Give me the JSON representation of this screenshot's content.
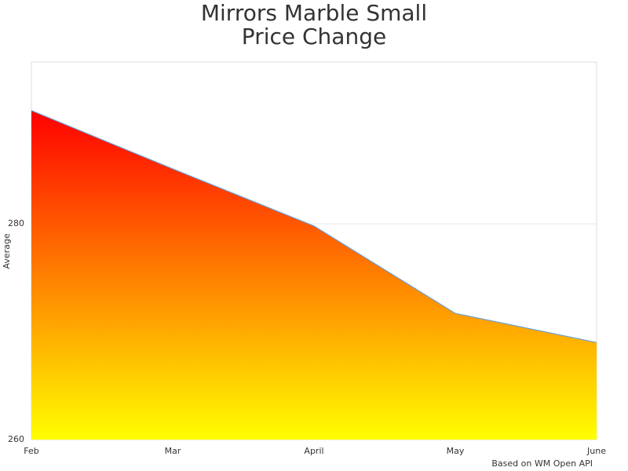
{
  "chart_data": {
    "type": "area",
    "title": [
      "Mirrors Marble Small",
      "Price Change"
    ],
    "y_label": "Average",
    "credit": "Based on WM Open API",
    "categories": [
      "Feb",
      "Mar",
      "April",
      "May",
      "June"
    ],
    "series": [
      {
        "values": [
          290.5,
          285.1,
          279.8,
          271.7,
          269.0
        ],
        "color": "#6aa0d8",
        "gradient": [
          "#ff0000",
          "#ffff00"
        ]
      }
    ],
    "ylim": [
      260,
      295
    ],
    "yticks": [
      260,
      280
    ],
    "grid": true
  }
}
